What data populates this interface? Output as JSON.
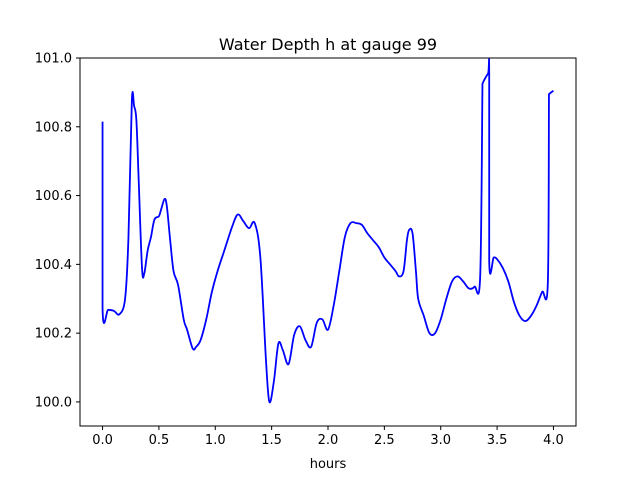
{
  "chart_data": {
    "type": "line",
    "title": "Water Depth h at gauge 99",
    "xlabel": "hours",
    "ylabel": "",
    "xlim": [
      -0.2,
      4.2
    ],
    "ylim": [
      99.93,
      101.0
    ],
    "xticks": [
      0.0,
      0.5,
      1.0,
      1.5,
      2.0,
      2.5,
      3.0,
      3.5,
      4.0
    ],
    "xtick_labels": [
      "0.0",
      "0.5",
      "1.0",
      "1.5",
      "2.0",
      "2.5",
      "3.0",
      "3.5",
      "4.0"
    ],
    "yticks": [
      100.0,
      100.2,
      100.4,
      100.6,
      100.8,
      101.0
    ],
    "ytick_labels": [
      "100.0",
      "100.2",
      "100.4",
      "100.6",
      "100.8",
      "101.0"
    ],
    "grid": false,
    "line_color": "#0000ff",
    "series": [
      {
        "x": [
          0.0,
          0.0,
          0.05,
          0.1,
          0.15,
          0.2,
          0.23,
          0.26,
          0.28,
          0.3,
          0.32,
          0.35,
          0.37,
          0.4,
          0.43,
          0.46,
          0.5,
          0.52,
          0.55,
          0.57,
          0.6,
          0.63,
          0.67,
          0.72,
          0.75,
          0.8,
          0.83,
          0.87,
          0.92,
          0.97,
          1.02,
          1.08,
          1.15,
          1.2,
          1.25,
          1.3,
          1.35,
          1.4,
          1.45,
          1.48,
          1.52,
          1.56,
          1.6,
          1.65,
          1.7,
          1.75,
          1.8,
          1.85,
          1.9,
          1.95,
          2.0,
          2.05,
          2.1,
          2.15,
          2.2,
          2.25,
          2.3,
          2.35,
          2.4,
          2.45,
          2.5,
          2.55,
          2.6,
          2.63,
          2.67,
          2.7,
          2.72,
          2.75,
          2.78,
          2.8,
          2.85,
          2.9,
          2.95,
          3.0,
          3.05,
          3.1,
          3.15,
          3.2,
          3.25,
          3.3,
          3.35,
          3.37,
          3.37,
          3.42,
          3.43,
          3.43,
          3.47,
          3.5,
          3.55,
          3.6,
          3.65,
          3.7,
          3.75,
          3.8,
          3.85,
          3.9,
          3.95,
          3.96,
          3.96,
          4.0
        ],
        "y": [
          100.815,
          100.27,
          100.268,
          100.265,
          100.255,
          100.3,
          100.48,
          100.875,
          100.86,
          100.82,
          100.65,
          100.39,
          100.373,
          100.44,
          100.48,
          100.53,
          100.54,
          100.56,
          100.59,
          100.57,
          100.47,
          100.38,
          100.34,
          100.24,
          100.21,
          100.155,
          100.16,
          100.18,
          100.24,
          100.32,
          100.38,
          100.44,
          100.51,
          100.545,
          100.525,
          100.505,
          100.52,
          100.42,
          100.12,
          100.0,
          100.06,
          100.17,
          100.15,
          100.11,
          100.195,
          100.22,
          100.18,
          100.16,
          100.23,
          100.24,
          100.21,
          100.28,
          100.38,
          100.48,
          100.52,
          100.52,
          100.515,
          100.49,
          100.47,
          100.45,
          100.42,
          100.4,
          100.38,
          100.365,
          100.38,
          100.47,
          100.5,
          100.49,
          100.38,
          100.3,
          100.25,
          100.2,
          100.2,
          100.24,
          100.3,
          100.35,
          100.365,
          100.35,
          100.33,
          100.335,
          100.365,
          100.915,
          100.925,
          100.955,
          100.955,
          100.41,
          100.42,
          100.415,
          100.39,
          100.35,
          100.29,
          100.25,
          100.235,
          100.25,
          100.28,
          100.32,
          100.345,
          100.895,
          100.895,
          100.905
        ]
      }
    ]
  }
}
